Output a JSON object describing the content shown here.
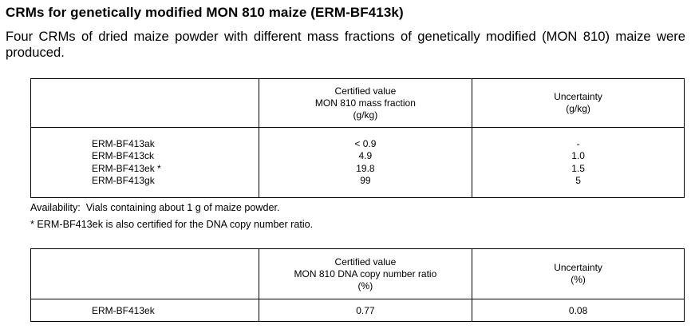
{
  "title": "CRMs for genetically modified MON 810 maize (ERM-BF413k)",
  "intro": "Four CRMs of dried maize powder with different mass fractions of genetically modified (MON 810) maize were produced.",
  "table1": {
    "header": {
      "certified_line1": "Certified value",
      "certified_line2": "MON 810 mass fraction",
      "certified_line3": "(g/kg)",
      "uncertainty_line1": "Uncertainty",
      "uncertainty_line2": "(g/kg)"
    },
    "rows": [
      {
        "name": "ERM-BF413ak",
        "value": "< 0.9",
        "uncertainty": "-"
      },
      {
        "name": "ERM-BF413ck",
        "value": "4.9",
        "uncertainty": "1.0"
      },
      {
        "name": "ERM-BF413ek *",
        "value": "19.8",
        "uncertainty": "1.5"
      },
      {
        "name": "ERM-BF413gk",
        "value": "99",
        "uncertainty": "5"
      }
    ]
  },
  "availability": "Availability:  Vials containing about 1 g of maize powder.",
  "footnote": "* ERM-BF413ek is also certified for the DNA copy number ratio.",
  "table2": {
    "header": {
      "certified_line1": "Certified value",
      "certified_line2": "MON 810 DNA copy number ratio",
      "certified_line3": "(%)",
      "uncertainty_line1": "Uncertainty",
      "uncertainty_line2": "(%)"
    },
    "rows": [
      {
        "name": "ERM-BF413ek",
        "value": "0.77",
        "uncertainty": "0.08"
      }
    ]
  }
}
